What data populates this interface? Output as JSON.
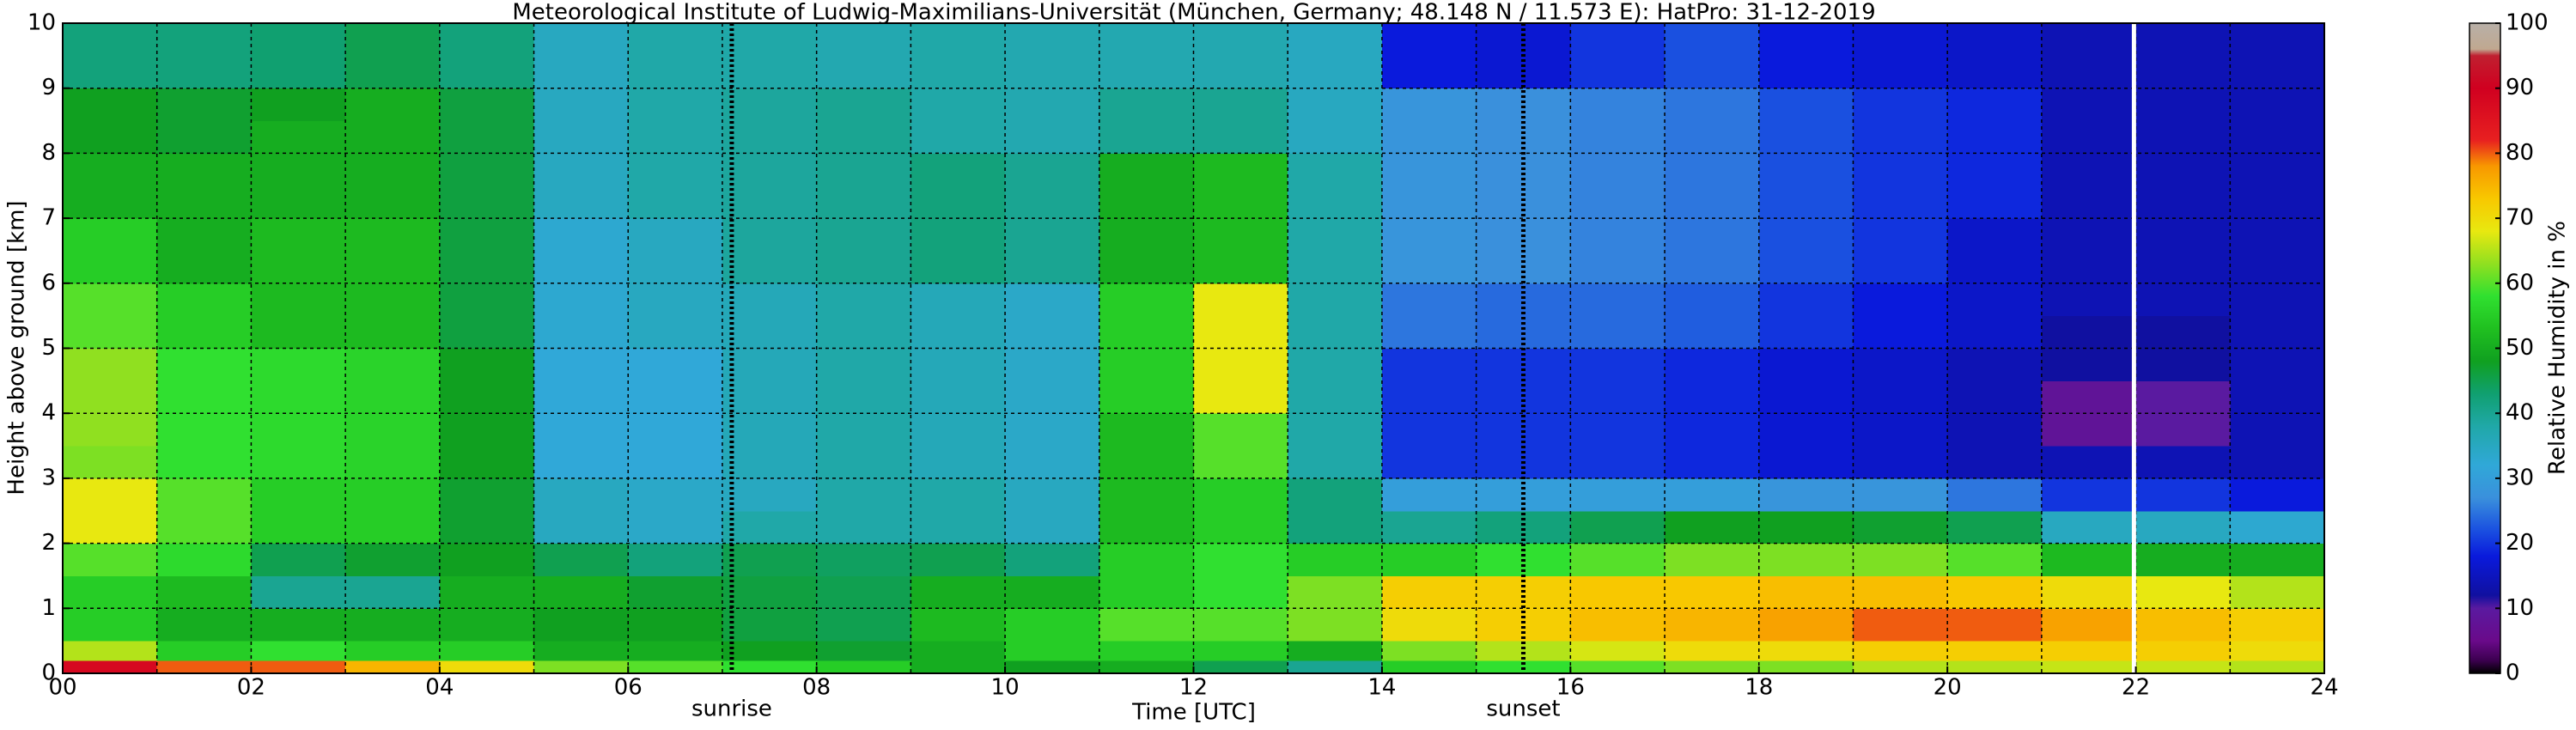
{
  "chart_data": {
    "type": "heatmap",
    "title": "Meteorological Institute of Ludwig-Maximilians-Universität (München, Germany; 48.148 N / 11.573 E):    HatPro: 31-12-2019",
    "x_label": "Time [UTC]",
    "y_label": "Height above ground [km]",
    "colorbar_label": "Relative Humidity in %",
    "x": [
      0,
      1,
      2,
      3,
      4,
      5,
      6,
      7,
      8,
      9,
      10,
      11,
      12,
      13,
      14,
      15,
      16,
      17,
      18,
      19,
      20,
      21,
      22,
      23,
      24
    ],
    "y": [
      0,
      0.2,
      0.5,
      1,
      1.5,
      2,
      2.5,
      3,
      3.5,
      4,
      4.5,
      5,
      5.5,
      6,
      6.5,
      7,
      7.5,
      8,
      8.5,
      9,
      9.5,
      10
    ],
    "z": [
      [
        88,
        80,
        80,
        75,
        70,
        62,
        60,
        58,
        55,
        50,
        48,
        50,
        45,
        40,
        55,
        58,
        60,
        62,
        62,
        65,
        65,
        66,
        66,
        65
      ],
      [
        65,
        55,
        58,
        55,
        55,
        50,
        50,
        48,
        47,
        50,
        55,
        55,
        55,
        50,
        62,
        65,
        67,
        70,
        70,
        72,
        72,
        72,
        72,
        70
      ],
      [
        55,
        50,
        50,
        50,
        50,
        48,
        48,
        46,
        45,
        52,
        55,
        60,
        60,
        62,
        70,
        72,
        74,
        75,
        77,
        80,
        80,
        77,
        74,
        72
      ],
      [
        55,
        52,
        40,
        40,
        50,
        50,
        47,
        46,
        45,
        50,
        50,
        55,
        58,
        62,
        72,
        72,
        73,
        73,
        74,
        74,
        73,
        70,
        68,
        65
      ],
      [
        60,
        57,
        45,
        47,
        48,
        45,
        42,
        45,
        44,
        45,
        42,
        55,
        58,
        55,
        55,
        58,
        60,
        62,
        62,
        62,
        60,
        52,
        50,
        50
      ],
      [
        68,
        60,
        55,
        55,
        47,
        35,
        34,
        38,
        38,
        38,
        35,
        52,
        55,
        42,
        40,
        42,
        45,
        48,
        48,
        47,
        45,
        35,
        35,
        33
      ],
      [
        68,
        60,
        55,
        55,
        47,
        35,
        34,
        35,
        38,
        38,
        35,
        52,
        55,
        42,
        30,
        30,
        30,
        30,
        28,
        28,
        25,
        20,
        20,
        18
      ],
      [
        62,
        58,
        57,
        56,
        48,
        32,
        32,
        36,
        38,
        36,
        34,
        52,
        60,
        38,
        20,
        20,
        20,
        19,
        17,
        16,
        14,
        14,
        14,
        14
      ],
      [
        63,
        58,
        57,
        56,
        48,
        32,
        32,
        36,
        38,
        36,
        34,
        52,
        60,
        38,
        20,
        20,
        20,
        19,
        17,
        16,
        14,
        8,
        10,
        14
      ],
      [
        63,
        58,
        57,
        56,
        48,
        32,
        32,
        36,
        38,
        36,
        34,
        55,
        68,
        38,
        20,
        20,
        20,
        19,
        17,
        16,
        14,
        8,
        10,
        14
      ],
      [
        63,
        58,
        57,
        56,
        48,
        32,
        32,
        36,
        38,
        36,
        34,
        55,
        68,
        38,
        20,
        20,
        20,
        19,
        17,
        16,
        14,
        12,
        12,
        14
      ],
      [
        60,
        55,
        52,
        52,
        46,
        33,
        35,
        36,
        38,
        36,
        34,
        55,
        68,
        38,
        25,
        24,
        24,
        23,
        20,
        18,
        16,
        12,
        12,
        14
      ],
      [
        60,
        55,
        52,
        52,
        46,
        33,
        35,
        36,
        38,
        36,
        34,
        55,
        68,
        38,
        25,
        24,
        24,
        23,
        20,
        18,
        16,
        14,
        14,
        14
      ],
      [
        55,
        50,
        52,
        52,
        46,
        33,
        35,
        39,
        40,
        42,
        40,
        50,
        52,
        38,
        28,
        27,
        26,
        25,
        22,
        20,
        16,
        14,
        14,
        14
      ],
      [
        55,
        50,
        52,
        52,
        46,
        33,
        35,
        39,
        40,
        42,
        40,
        50,
        52,
        38,
        28,
        27,
        26,
        25,
        22,
        20,
        16,
        14,
        14,
        14
      ],
      [
        50,
        50,
        50,
        50,
        46,
        35,
        38,
        39,
        40,
        42,
        40,
        50,
        52,
        38,
        28,
        27,
        26,
        25,
        22,
        20,
        19,
        14,
        14,
        14
      ],
      [
        50,
        50,
        50,
        50,
        46,
        35,
        38,
        39,
        40,
        42,
        40,
        50,
        52,
        38,
        28,
        27,
        26,
        25,
        22,
        20,
        19,
        14,
        14,
        14
      ],
      [
        48,
        47,
        50,
        50,
        46,
        35,
        38,
        39,
        40,
        38,
        37,
        40,
        40,
        35,
        28,
        27,
        26,
        25,
        22,
        20,
        19,
        14,
        14,
        14
      ],
      [
        48,
        47,
        48,
        50,
        46,
        35,
        38,
        39,
        40,
        38,
        37,
        40,
        40,
        35,
        28,
        27,
        26,
        25,
        22,
        20,
        19,
        14,
        14,
        14
      ],
      [
        42,
        42,
        43,
        45,
        42,
        35,
        38,
        38,
        37,
        38,
        37,
        37,
        37,
        35,
        18,
        17,
        20,
        22,
        18,
        17,
        16,
        14,
        14,
        14
      ],
      [
        42,
        42,
        43,
        45,
        42,
        35,
        38,
        38,
        37,
        38,
        37,
        37,
        37,
        35,
        18,
        17,
        20,
        22,
        18,
        17,
        16,
        14,
        14,
        14
      ]
    ],
    "xlim": [
      0,
      24
    ],
    "ylim": [
      0,
      10
    ],
    "clim": [
      0,
      100
    ],
    "xticks": [
      {
        "value": 0,
        "label": "00"
      },
      {
        "value": 2,
        "label": "02"
      },
      {
        "value": 4,
        "label": "04"
      },
      {
        "value": 6,
        "label": "06"
      },
      {
        "value": 8,
        "label": "08"
      },
      10,
      12,
      14,
      16,
      18,
      20,
      22,
      24
    ],
    "xminor": [
      1,
      3,
      5,
      7,
      9,
      11,
      13,
      15,
      17,
      19,
      21,
      23
    ],
    "yticks": [
      0,
      1,
      2,
      3,
      4,
      5,
      6,
      7,
      8,
      9,
      10
    ],
    "cticks": [
      0,
      10,
      20,
      30,
      40,
      50,
      60,
      70,
      80,
      90,
      100
    ],
    "grid": true,
    "gap_x": 21.98,
    "annotations": [
      {
        "text": "sunrise",
        "x": 7.1
      },
      {
        "text": "sunset",
        "x": 15.5
      }
    ],
    "colorscale": [
      [
        0,
        "#000000"
      ],
      [
        2,
        "#3c0050"
      ],
      [
        5,
        "#6a0a8a"
      ],
      [
        10,
        "#5a1aa0"
      ],
      [
        12,
        "#1010a0"
      ],
      [
        18,
        "#0a1adc"
      ],
      [
        22,
        "#1a50e0"
      ],
      [
        27,
        "#3a90dc"
      ],
      [
        32,
        "#30a8d8"
      ],
      [
        38,
        "#20a8a8"
      ],
      [
        43,
        "#10a070"
      ],
      [
        48,
        "#10a020"
      ],
      [
        53,
        "#20c020"
      ],
      [
        58,
        "#30e030"
      ],
      [
        63,
        "#90e020"
      ],
      [
        68,
        "#e8e810"
      ],
      [
        73,
        "#f8c800"
      ],
      [
        78,
        "#f89800"
      ],
      [
        82,
        "#e82020"
      ],
      [
        90,
        "#d00020"
      ],
      [
        95,
        "#c02030"
      ],
      [
        96,
        "#c0a890"
      ],
      [
        100,
        "#b8b0a8"
      ]
    ]
  }
}
